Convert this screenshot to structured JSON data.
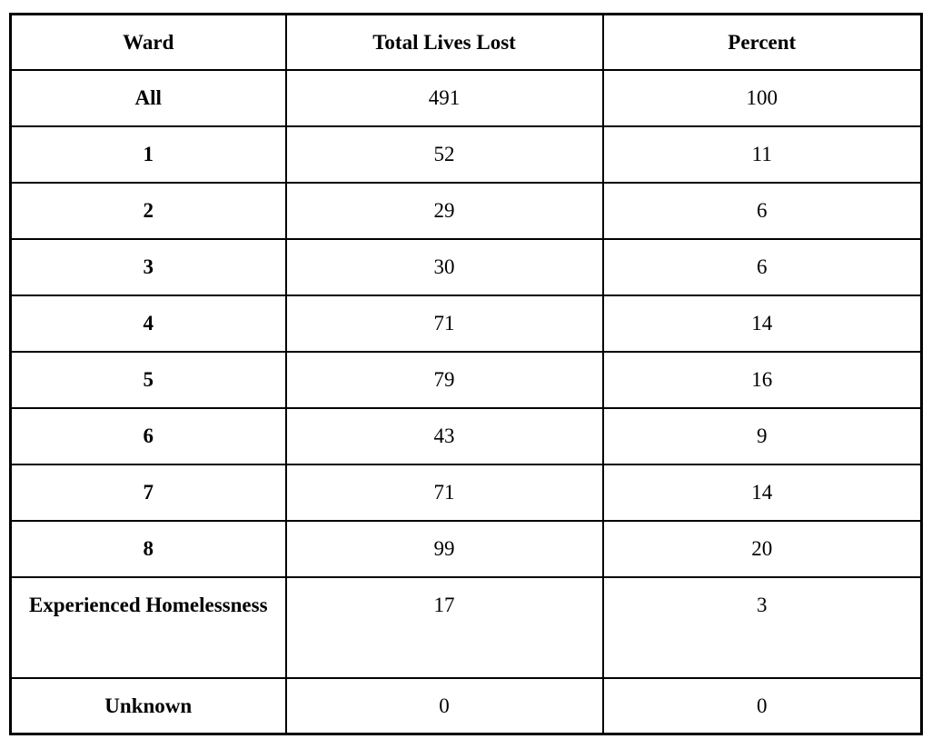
{
  "table": {
    "columns": [
      "Ward",
      "Total Lives Lost",
      "Percent"
    ],
    "rows": [
      {
        "ward": "All",
        "total": "491",
        "percent": "100"
      },
      {
        "ward": "1",
        "total": "52",
        "percent": "11"
      },
      {
        "ward": "2",
        "total": "29",
        "percent": "6"
      },
      {
        "ward": "3",
        "total": "30",
        "percent": "6"
      },
      {
        "ward": "4",
        "total": "71",
        "percent": "14"
      },
      {
        "ward": "5",
        "total": "79",
        "percent": "16"
      },
      {
        "ward": "6",
        "total": "43",
        "percent": "9"
      },
      {
        "ward": "7",
        "total": "71",
        "percent": "14"
      },
      {
        "ward": "8",
        "total": "99",
        "percent": "20"
      },
      {
        "ward": "Experienced Homelessness",
        "total": "17",
        "percent": "3",
        "tall": true
      },
      {
        "ward": "Unknown",
        "total": "0",
        "percent": "0"
      }
    ],
    "border_color": "#000000",
    "background_color": "#ffffff",
    "text_color": "#000000"
  },
  "chart_data": {
    "type": "table",
    "title": "",
    "columns": [
      "Ward",
      "Total Lives Lost",
      "Percent"
    ],
    "categories": [
      "All",
      "1",
      "2",
      "3",
      "4",
      "5",
      "6",
      "7",
      "8",
      "Experienced Homelessness",
      "Unknown"
    ],
    "series": [
      {
        "name": "Total Lives Lost",
        "values": [
          491,
          52,
          29,
          30,
          71,
          79,
          43,
          71,
          99,
          17,
          0
        ]
      },
      {
        "name": "Percent",
        "values": [
          100,
          11,
          6,
          6,
          14,
          16,
          9,
          14,
          20,
          3,
          0
        ]
      }
    ]
  }
}
